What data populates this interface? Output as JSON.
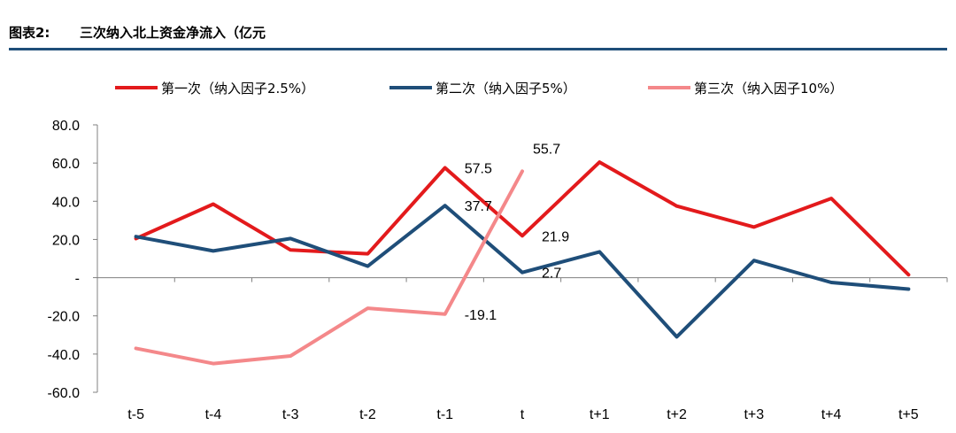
{
  "header": {
    "figure_label": "图表2:",
    "title": "三次纳入北上资金净流入（亿元"
  },
  "chart_data": {
    "type": "line",
    "title": "三次纳入北上资金净流入（亿元",
    "xlabel": "",
    "ylabel": "",
    "categories": [
      "t-5",
      "t-4",
      "t-3",
      "t-2",
      "t-1",
      "t",
      "t+1",
      "t+2",
      "t+3",
      "t+4",
      "t+5"
    ],
    "ylim": [
      -60,
      80
    ],
    "yticks": [
      -60,
      -40,
      -20,
      0,
      20,
      40,
      60,
      80
    ],
    "ytick_labels": [
      "-60.0",
      "-40.0",
      "-20.0",
      "-",
      "20.0",
      "40.0",
      "60.0",
      "80.0"
    ],
    "grid": false,
    "legend_position": "top",
    "series": [
      {
        "name": "第一次（纳入因子2.5%）",
        "color": "#e31a1c",
        "values": [
          20.5,
          38.5,
          14.5,
          12.5,
          57.5,
          21.9,
          60.5,
          37.5,
          26.5,
          41.5,
          1.5
        ]
      },
      {
        "name": "第二次（纳入因子5%）",
        "color": "#1f4e79",
        "values": [
          21.5,
          14.0,
          20.5,
          6.0,
          37.7,
          2.7,
          13.5,
          -31.0,
          9.0,
          -2.5,
          -6.0
        ]
      },
      {
        "name": "第三次（纳入因子10%）",
        "color": "#f4888a",
        "values": [
          -37.0,
          -45.0,
          -41.0,
          -16.0,
          -19.1,
          55.7,
          null,
          null,
          null,
          null,
          null
        ]
      }
    ],
    "annotations": [
      {
        "text": "57.5",
        "x": "t-1",
        "y": 57.5,
        "placement": "right"
      },
      {
        "text": "37.7",
        "x": "t-1",
        "y": 37.7,
        "placement": "right"
      },
      {
        "text": "-19.1",
        "x": "t-1",
        "y": -19.1,
        "placement": "right"
      },
      {
        "text": "55.7",
        "x": "t",
        "y": 55.7,
        "placement": "above"
      },
      {
        "text": "21.9",
        "x": "t",
        "y": 21.9,
        "placement": "right"
      },
      {
        "text": "2.7",
        "x": "t",
        "y": 2.7,
        "placement": "right"
      }
    ]
  }
}
